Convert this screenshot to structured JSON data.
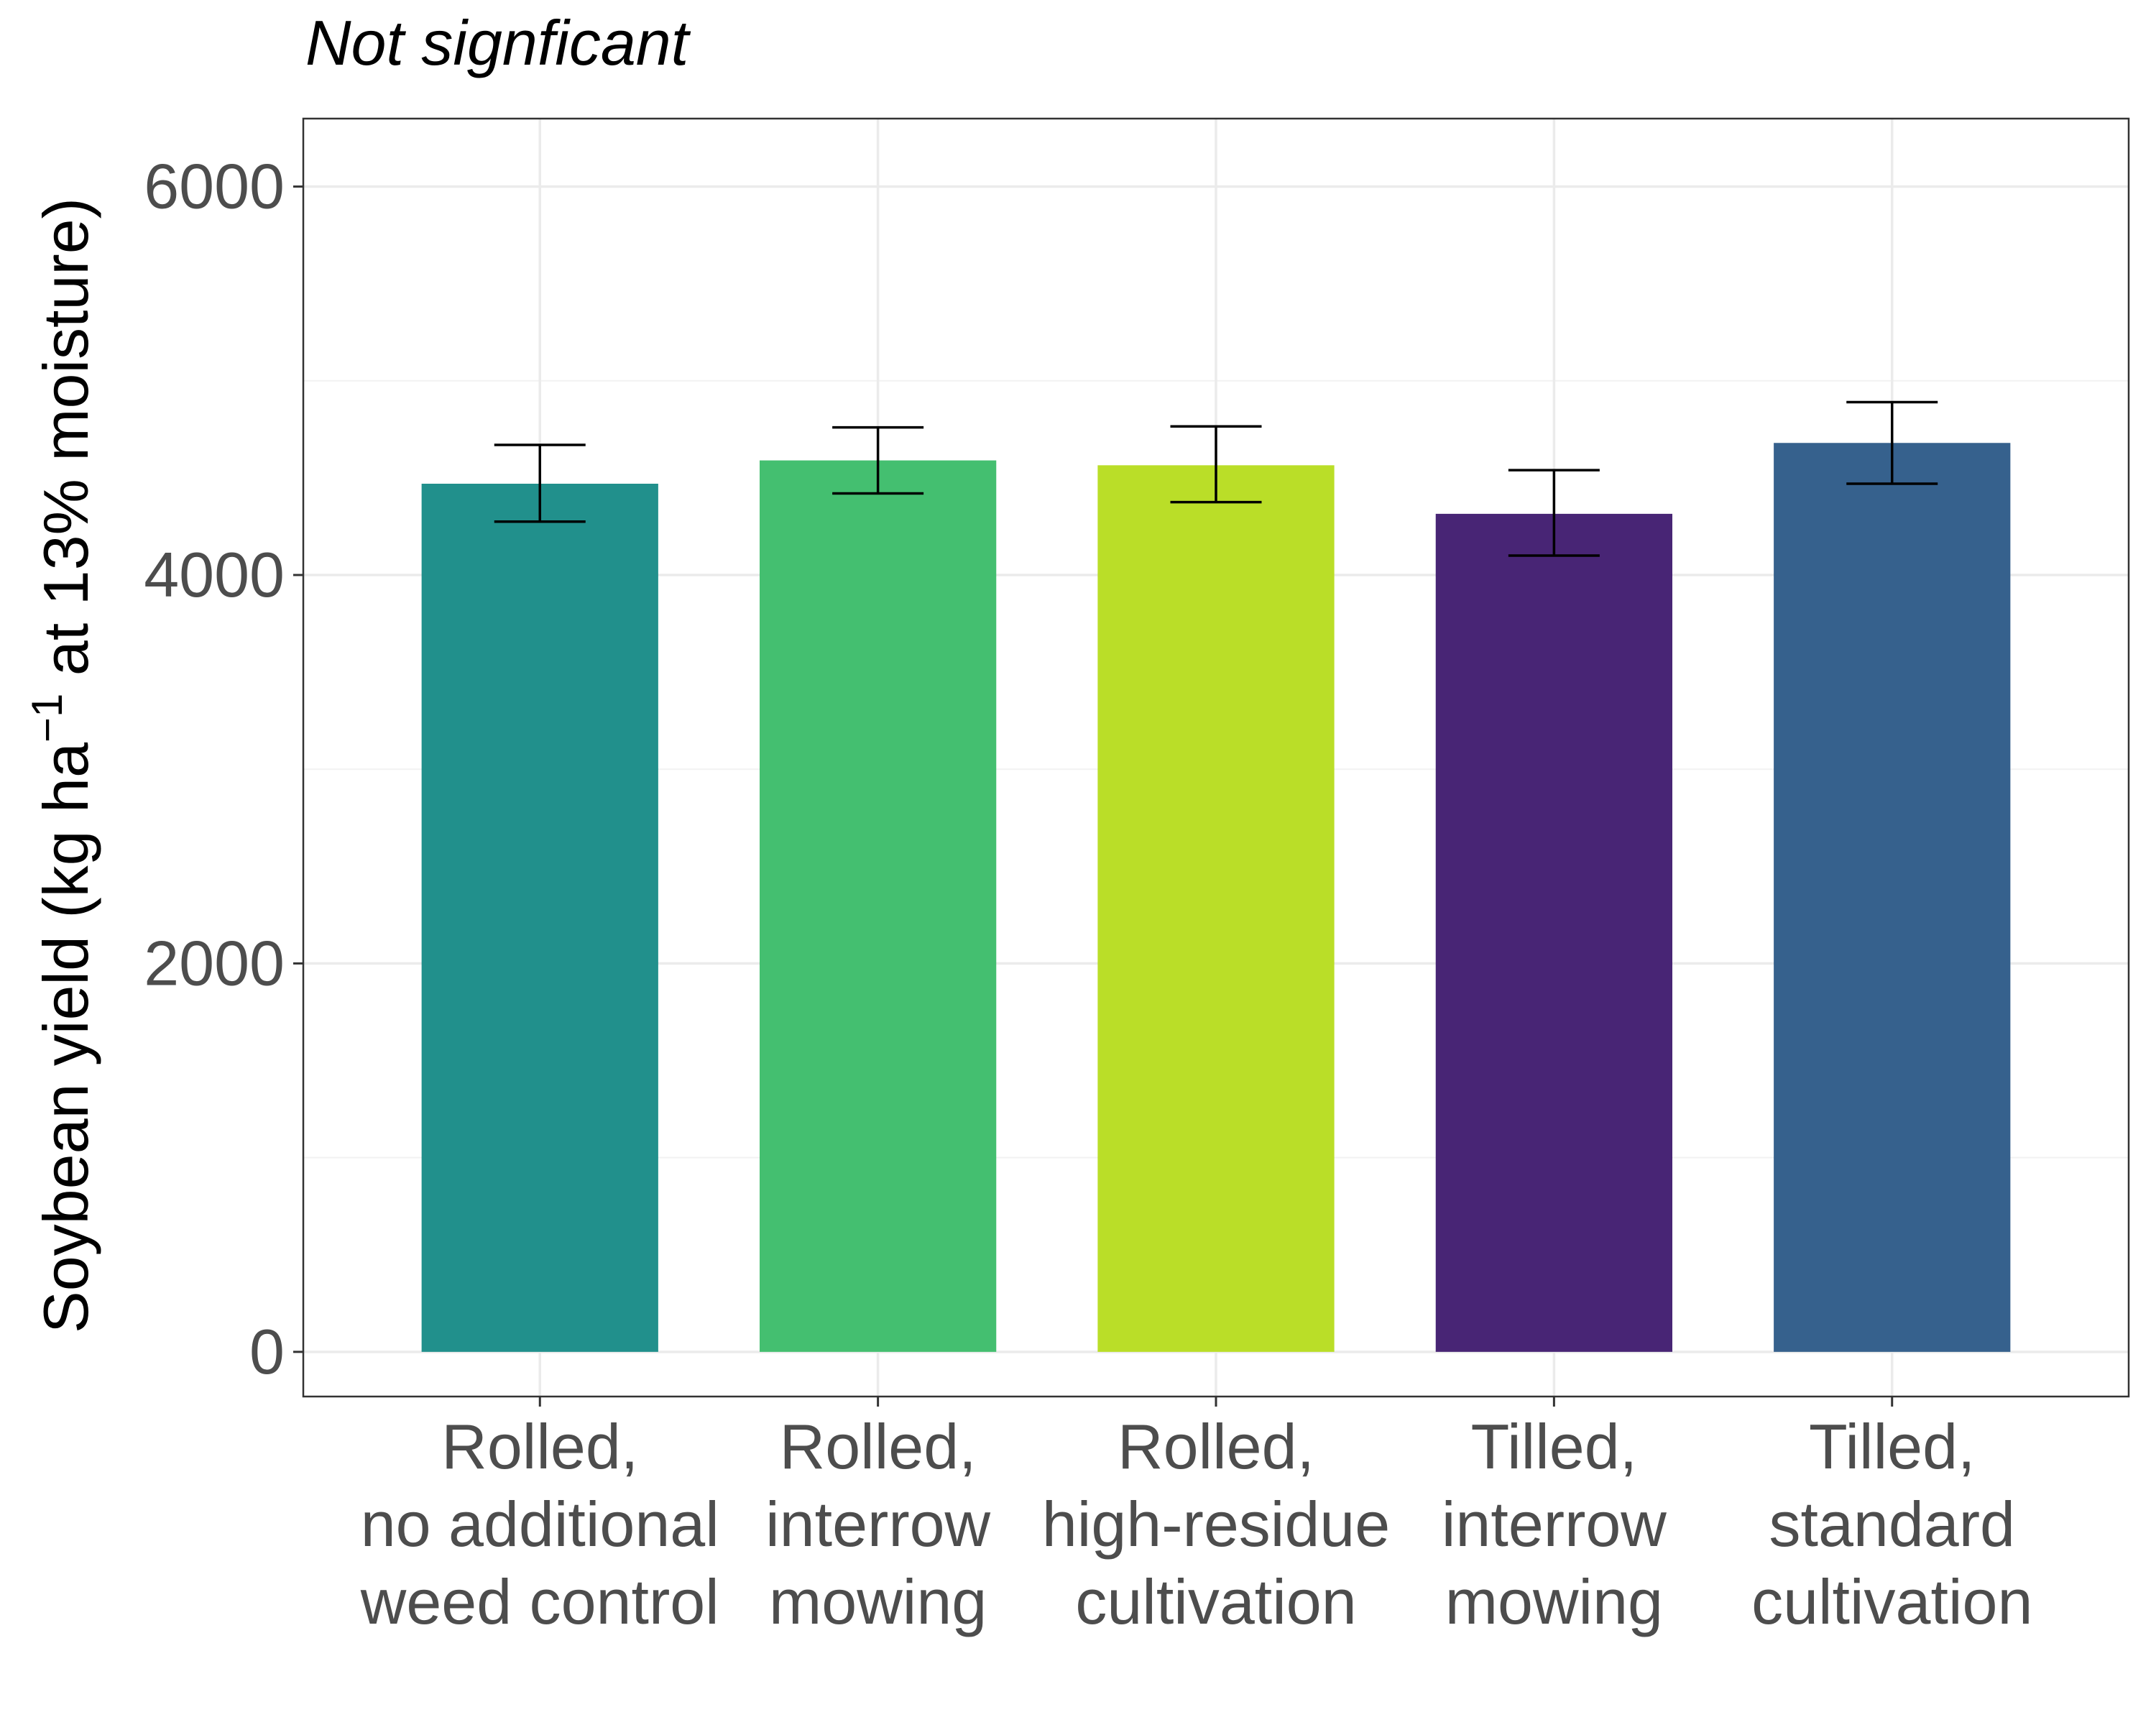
{
  "chart_data": {
    "type": "bar",
    "title": "Not signficant",
    "xlabel": "",
    "ylabel": "Soybean yield (kg ha",
    "ylabel_superscript": "−1",
    "ylabel_suffix": " at 13% moisture)",
    "ylim": [
      -230,
      6350
    ],
    "yticks": [
      0,
      2000,
      4000,
      6000
    ],
    "grid": true,
    "legend": "none",
    "categories": [
      [
        "Rolled,",
        "no additional",
        "weed control"
      ],
      [
        "Rolled,",
        "interrow",
        "mowing"
      ],
      [
        "Rolled,",
        "high-residue",
        "cultivation"
      ],
      [
        "Tilled,",
        "interrow",
        "mowing"
      ],
      [
        "Tilled,",
        "standard",
        "cultivation"
      ]
    ],
    "values": [
      4470,
      4590,
      4565,
      4315,
      4680
    ],
    "error_low": [
      4275,
      4420,
      4375,
      4100,
      4470
    ],
    "error_high": [
      4670,
      4760,
      4765,
      4540,
      4890
    ],
    "colors": [
      "#21908c",
      "#44bf70",
      "#bade28",
      "#482575",
      "#36618d"
    ]
  }
}
